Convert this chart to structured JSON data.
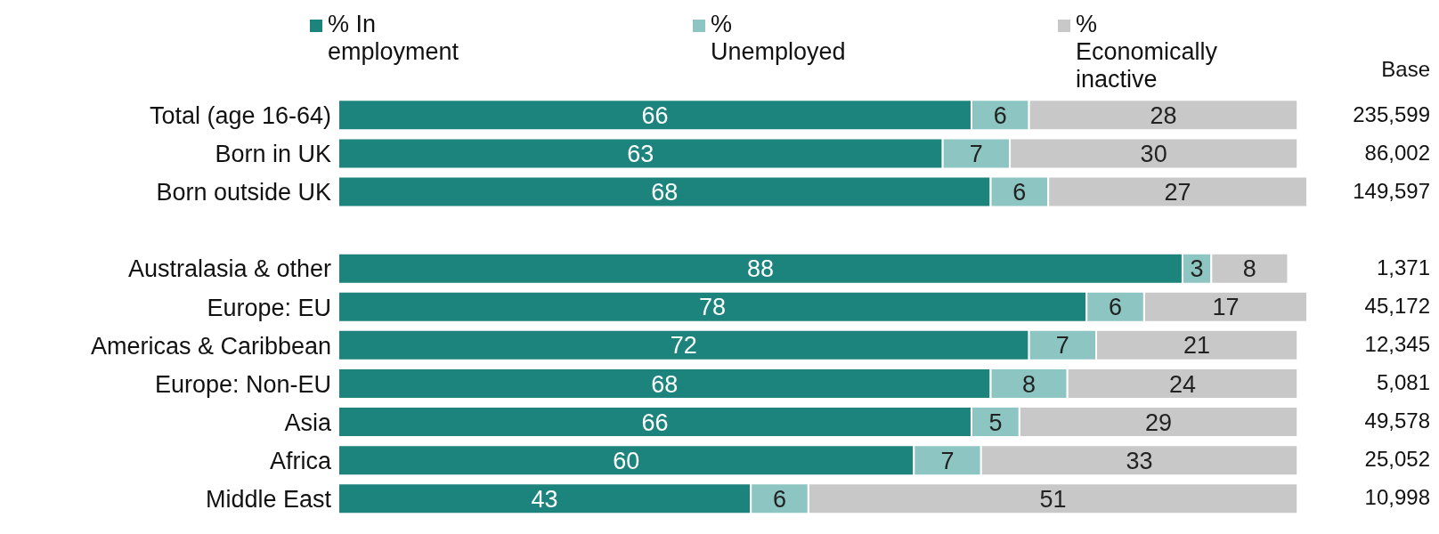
{
  "chart_data": {
    "type": "bar",
    "orientation": "horizontal",
    "stacked": true,
    "data_labels": true,
    "legend": "top",
    "categories": [
      "Total (age 16-64)",
      "Born in UK",
      "Born outside UK",
      null,
      "Australasia & other",
      "Europe: EU",
      "Americas & Caribbean",
      "Europe: Non-EU",
      "Asia",
      "Africa",
      "Middle East"
    ],
    "series": [
      {
        "name": "% In employment",
        "color": "#1d837d",
        "values": [
          66,
          63,
          68,
          null,
          88,
          78,
          72,
          68,
          66,
          60,
          43
        ]
      },
      {
        "name": "% Unemployed",
        "color": "#8cc5c2",
        "values": [
          6,
          7,
          6,
          null,
          3,
          6,
          7,
          8,
          5,
          7,
          6
        ]
      },
      {
        "name": "% Economically inactive",
        "color": "#c8c8c8",
        "values": [
          28,
          30,
          27,
          null,
          8,
          17,
          21,
          24,
          29,
          33,
          51
        ]
      }
    ],
    "annotations": [
      "Base",
      "235,599",
      "86,002",
      "149,597",
      "1,371",
      "45,172",
      "12,345",
      "5,081",
      "49,578",
      "25,052",
      "10,998"
    ]
  }
}
